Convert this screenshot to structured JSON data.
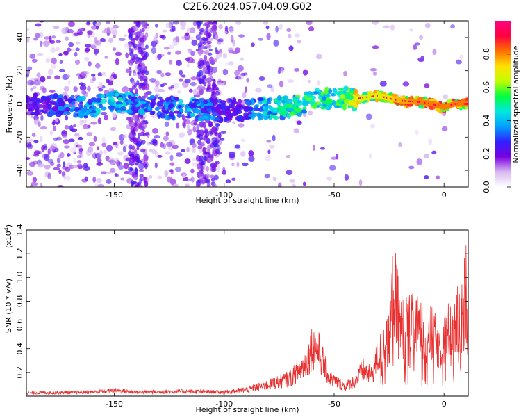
{
  "title": "C2E6.2024.057.04.09.G02",
  "chart_data": [
    {
      "type": "heatmap",
      "xlabel": "Height of straight line (km)",
      "ylabel": "Frequency (Hz)",
      "xlim": [
        -190,
        11
      ],
      "ylim": [
        -50,
        50
      ],
      "xticks": [
        -150,
        -100,
        -50,
        0
      ],
      "yticks": [
        -40,
        -20,
        0,
        20,
        40
      ],
      "colorbar": {
        "label": "Normalized spectral amplitude",
        "range": [
          0.0,
          1.0
        ],
        "ticks": [
          0.0,
          0.2,
          0.4,
          0.6,
          0.8
        ],
        "tick_labels": [
          "0.0",
          "0.2",
          "0.4",
          "0.6",
          "0.8"
        ],
        "colormap": [
          "#ffffff",
          "#d8b8f0",
          "#7a00e0",
          "#3020ff",
          "#00a0ff",
          "#00e8e0",
          "#00ff40",
          "#c0ff00",
          "#ffe000",
          "#ff7000",
          "#ff0040",
          "#ff0080"
        ]
      },
      "ridge": [
        {
          "x": -190,
          "y": 0,
          "amp": 0.25
        },
        {
          "x": -160,
          "y": -2,
          "amp": 0.45
        },
        {
          "x": -150,
          "y": 1,
          "amp": 0.5
        },
        {
          "x": -130,
          "y": -2,
          "amp": 0.35
        },
        {
          "x": -115,
          "y": -3,
          "amp": 0.45
        },
        {
          "x": -100,
          "y": -4,
          "amp": 0.3
        },
        {
          "x": -90,
          "y": -3,
          "amp": 0.3
        },
        {
          "x": -85,
          "y": -3,
          "amp": 0.45
        },
        {
          "x": -70,
          "y": -2,
          "amp": 0.55
        },
        {
          "x": -60,
          "y": 2,
          "amp": 0.6
        },
        {
          "x": -50,
          "y": 4,
          "amp": 0.55
        },
        {
          "x": -40,
          "y": 3,
          "amp": 0.75
        },
        {
          "x": -30,
          "y": 5,
          "amp": 0.75
        },
        {
          "x": -20,
          "y": 2,
          "amp": 0.85
        },
        {
          "x": -10,
          "y": 1,
          "amp": 0.9
        },
        {
          "x": -5,
          "y": 0,
          "amp": 0.9
        },
        {
          "x": 0,
          "y": -2,
          "amp": 0.9
        },
        {
          "x": 5,
          "y": 0,
          "amp": 0.9
        },
        {
          "x": 11,
          "y": 0,
          "amp": 0.9
        }
      ]
    },
    {
      "type": "line",
      "xlabel": "Height of straight line (km)",
      "ylabel": "SNR (10 * v/v)",
      "ylabel_scale": "(x10",
      "ylabel_scale_exp": "4",
      "ylabel_scale_close": ")",
      "xlim": [
        -190,
        11
      ],
      "ylim": [
        0,
        1.4
      ],
      "xticks": [
        -150,
        -100,
        -50,
        0
      ],
      "yticks": [
        0.2,
        0.4,
        0.6,
        0.8,
        1.0,
        1.2,
        1.4
      ],
      "ytick_labels": [
        "0.2",
        "0.4",
        "0.6",
        "0.8",
        "1.0",
        "1.2",
        "1.4"
      ],
      "color": "#e83030",
      "envelope": [
        {
          "x": -190,
          "y": 0.04
        },
        {
          "x": -160,
          "y": 0.05
        },
        {
          "x": -150,
          "y": 0.07
        },
        {
          "x": -140,
          "y": 0.05
        },
        {
          "x": -120,
          "y": 0.06
        },
        {
          "x": -100,
          "y": 0.05
        },
        {
          "x": -90,
          "y": 0.08
        },
        {
          "x": -80,
          "y": 0.14
        },
        {
          "x": -70,
          "y": 0.22
        },
        {
          "x": -63,
          "y": 0.4
        },
        {
          "x": -60,
          "y": 0.62
        },
        {
          "x": -57,
          "y": 0.55
        },
        {
          "x": -52,
          "y": 0.22
        },
        {
          "x": -45,
          "y": 0.12
        },
        {
          "x": -40,
          "y": 0.2
        },
        {
          "x": -37,
          "y": 0.32
        },
        {
          "x": -33,
          "y": 0.25
        },
        {
          "x": -30,
          "y": 0.5
        },
        {
          "x": -25,
          "y": 0.7
        },
        {
          "x": -23,
          "y": 1.38
        },
        {
          "x": -20,
          "y": 0.9
        },
        {
          "x": -12,
          "y": 0.85
        },
        {
          "x": -5,
          "y": 0.75
        },
        {
          "x": -2,
          "y": 0.6
        },
        {
          "x": 3,
          "y": 0.85
        },
        {
          "x": 8,
          "y": 1.0
        },
        {
          "x": 10,
          "y": 1.3
        },
        {
          "x": 11,
          "y": 0.85
        }
      ]
    }
  ]
}
